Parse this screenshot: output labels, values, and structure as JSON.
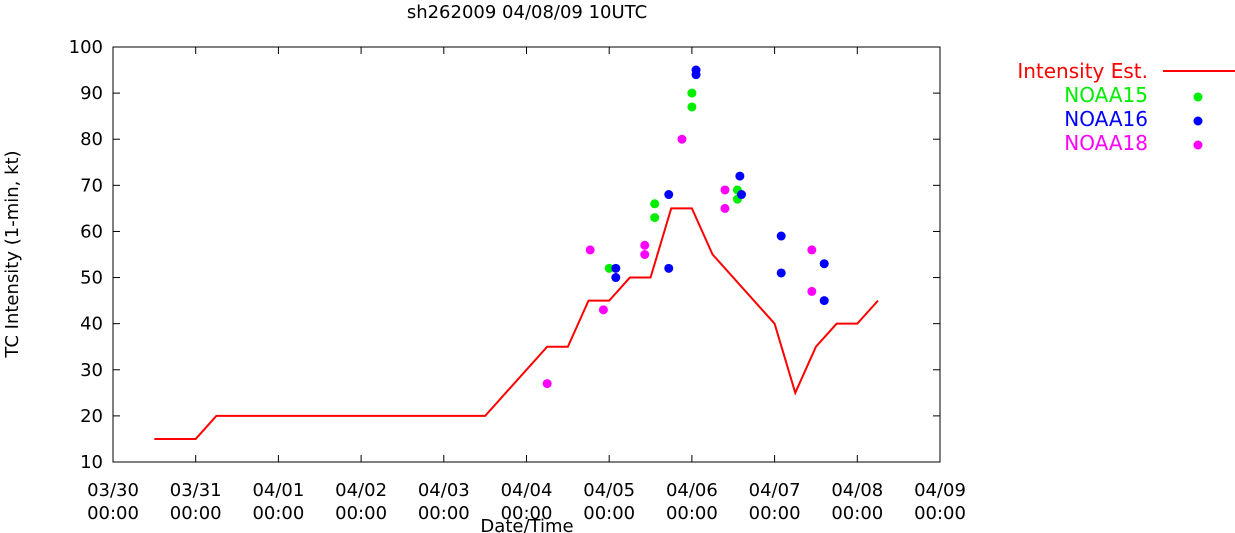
{
  "chart_data": {
    "type": "line",
    "title": "sh262009 04/08/09 10UTC",
    "xlabel": "Date/Time",
    "ylabel": "TC Intensity (1-min, kt)",
    "x_unit": "day",
    "xlim": [
      0,
      10
    ],
    "ylim": [
      10,
      100
    ],
    "yticks": [
      10,
      20,
      30,
      40,
      50,
      60,
      70,
      80,
      90,
      100
    ],
    "xticks": [
      {
        "x": 0,
        "label1": "03/30",
        "label2": "00:00"
      },
      {
        "x": 1,
        "label1": "03/31",
        "label2": "00:00"
      },
      {
        "x": 2,
        "label1": "04/01",
        "label2": "00:00"
      },
      {
        "x": 3,
        "label1": "04/02",
        "label2": "00:00"
      },
      {
        "x": 4,
        "label1": "04/03",
        "label2": "00:00"
      },
      {
        "x": 5,
        "label1": "04/04",
        "label2": "00:00"
      },
      {
        "x": 6,
        "label1": "04/05",
        "label2": "00:00"
      },
      {
        "x": 7,
        "label1": "04/06",
        "label2": "00:00"
      },
      {
        "x": 8,
        "label1": "04/07",
        "label2": "00:00"
      },
      {
        "x": 9,
        "label1": "04/08",
        "label2": "00:00"
      },
      {
        "x": 10,
        "label1": "04/09",
        "label2": "00:00"
      }
    ],
    "grid": false,
    "legend_position": "outside-right",
    "series": [
      {
        "name": "Intensity Est.",
        "kind": "line",
        "color": "#ff0000",
        "x": [
          0.5,
          1.0,
          1.25,
          4.5,
          5.25,
          5.5,
          5.75,
          6.0,
          6.25,
          6.5,
          6.75,
          7.0,
          7.25,
          8.0,
          8.25,
          8.5,
          8.75,
          9.0,
          9.25
        ],
        "y": [
          15,
          15,
          20,
          20,
          35,
          35,
          45,
          45,
          50,
          50,
          65,
          65,
          55,
          40,
          25,
          35,
          40,
          40,
          45
        ]
      },
      {
        "name": "NOAA15",
        "kind": "points",
        "color": "#00ee00",
        "x": [
          6.0,
          6.55,
          6.55,
          7.0,
          7.0,
          7.55,
          7.55
        ],
        "y": [
          52,
          66,
          63,
          90,
          87,
          69,
          67
        ]
      },
      {
        "name": "NOAA16",
        "kind": "points",
        "color": "#0000ff",
        "x": [
          6.08,
          6.08,
          6.72,
          6.72,
          7.05,
          7.05,
          7.58,
          7.6,
          8.08,
          8.08,
          8.6,
          8.6
        ],
        "y": [
          52,
          50,
          68,
          52,
          95,
          94,
          72,
          68,
          59,
          51,
          53,
          45
        ]
      },
      {
        "name": "NOAA18",
        "kind": "points",
        "color": "#ff00ff",
        "x": [
          5.25,
          5.77,
          5.93,
          6.43,
          6.43,
          6.88,
          7.4,
          7.4,
          8.45,
          8.45
        ],
        "y": [
          27,
          56,
          43,
          57,
          55,
          80,
          69,
          65,
          56,
          47
        ]
      }
    ]
  }
}
